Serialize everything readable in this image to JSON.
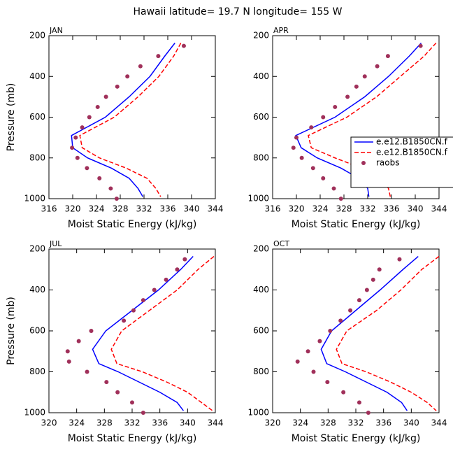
{
  "title": "Hawaii  latitude= 19.7 N longitude= 155 W",
  "chart_data": [
    {
      "type": "line",
      "title": "JAN",
      "xlabel": "Moist Static Energy (kJ/kg)",
      "ylabel": "Pressure (mb)",
      "xlim": [
        316,
        344
      ],
      "xticks": [
        316,
        320,
        324,
        328,
        332,
        336,
        340,
        344
      ],
      "ylim": [
        1000,
        200
      ],
      "yticks": [
        200,
        400,
        600,
        800,
        1000
      ],
      "legend": false,
      "series": [
        {
          "name": "e.e12.B1850CN.f",
          "color": "#0000ff",
          "style": "solid",
          "pressure": [
            236,
            300,
            400,
            500,
            600,
            690,
            750,
            800,
            850,
            900,
            950,
            990
          ],
          "values": [
            337.2,
            335.5,
            333.0,
            329.5,
            325.5,
            319.8,
            320.0,
            322.5,
            326.5,
            329.5,
            331.0,
            331.8
          ]
        },
        {
          "name": "e.e12.B1850CN.f",
          "color": "#ff0000",
          "style": "dashed",
          "pressure": [
            236,
            300,
            400,
            500,
            600,
            690,
            750,
            800,
            850,
            900,
            950,
            990
          ],
          "values": [
            338.2,
            337.0,
            334.5,
            331.0,
            327.0,
            321.2,
            321.6,
            324.5,
            329.0,
            332.5,
            334.0,
            334.8
          ]
        },
        {
          "name": "raobs",
          "color": "#a0305a",
          "style": "markers",
          "pressure": [
            250,
            300,
            350,
            400,
            450,
            500,
            550,
            600,
            650,
            700,
            750,
            800,
            850,
            900,
            950,
            1000
          ],
          "values": [
            338.7,
            334.4,
            331.4,
            329.2,
            327.5,
            325.6,
            324.2,
            322.8,
            321.6,
            320.5,
            319.9,
            320.8,
            322.4,
            324.5,
            326.4,
            327.4
          ]
        }
      ]
    },
    {
      "type": "line",
      "title": "APR",
      "xlabel": "Moist Static Energy (kJ/kg)",
      "xlim": [
        316,
        344
      ],
      "xticks": [
        316,
        320,
        324,
        328,
        332,
        336,
        340,
        344
      ],
      "ylim": [
        1000,
        200
      ],
      "yticks": [
        200,
        400,
        600,
        800,
        1000
      ],
      "legend": true,
      "series": [
        {
          "name": "e.e12.B1850CN.f",
          "color": "#0000ff",
          "style": "solid",
          "pressure": [
            236,
            300,
            400,
            500,
            600,
            690,
            750,
            800,
            850,
            900,
            950,
            990
          ],
          "values": [
            341.0,
            339.0,
            335.5,
            331.5,
            326.5,
            319.9,
            320.8,
            323.5,
            327.5,
            330.5,
            332.0,
            332.2
          ]
        },
        {
          "name": "e.e12.B1850CN.f",
          "color": "#ff0000",
          "style": "dashed",
          "pressure": [
            236,
            300,
            400,
            500,
            600,
            690,
            750,
            800,
            850,
            900,
            950,
            990
          ],
          "values": [
            343.5,
            341.5,
            337.5,
            333.5,
            328.5,
            322.0,
            322.5,
            326.5,
            331.0,
            334.0,
            335.5,
            335.8
          ]
        },
        {
          "name": "raobs",
          "color": "#a0305a",
          "style": "markers",
          "pressure": [
            250,
            300,
            350,
            400,
            450,
            500,
            550,
            600,
            650,
            700,
            750,
            800,
            850,
            900,
            950,
            1000
          ],
          "values": [
            340.9,
            335.4,
            333.6,
            331.5,
            330.1,
            328.6,
            326.5,
            324.5,
            322.5,
            320.0,
            319.5,
            320.9,
            322.8,
            324.5,
            326.3,
            327.5
          ]
        }
      ]
    },
    {
      "type": "line",
      "title": "JUL",
      "xlabel": "Moist Static Energy (kJ/kg)",
      "ylabel": "Pressure (mb)",
      "xlim": [
        320,
        344
      ],
      "xticks": [
        320,
        324,
        328,
        332,
        336,
        340,
        344
      ],
      "ylim": [
        1000,
        200
      ],
      "yticks": [
        200,
        400,
        600,
        800,
        1000
      ],
      "legend": false,
      "series": [
        {
          "name": "e.e12.B1850CN.f",
          "color": "#0000ff",
          "style": "solid",
          "pressure": [
            236,
            300,
            400,
            500,
            600,
            690,
            760,
            800,
            850,
            900,
            950,
            990
          ],
          "values": [
            340.8,
            339.0,
            335.8,
            332.0,
            328.2,
            326.3,
            327.2,
            330.0,
            333.0,
            336.0,
            338.5,
            339.4
          ]
        },
        {
          "name": "e.e12.B1850CN.f",
          "color": "#ff0000",
          "style": "dashed",
          "pressure": [
            236,
            300,
            400,
            500,
            600,
            690,
            760,
            800,
            850,
            900,
            950,
            990
          ],
          "values": [
            343.8,
            341.5,
            338.5,
            334.5,
            330.5,
            329.0,
            329.8,
            333.5,
            337.0,
            340.0,
            342.0,
            343.6
          ]
        },
        {
          "name": "raobs",
          "color": "#a0305a",
          "style": "markers",
          "pressure": [
            250,
            300,
            350,
            400,
            450,
            500,
            550,
            600,
            650,
            700,
            750,
            800,
            850,
            900,
            950,
            1000
          ],
          "values": [
            339.6,
            338.5,
            336.9,
            335.2,
            333.6,
            332.2,
            330.8,
            326.1,
            324.3,
            322.7,
            322.9,
            325.5,
            328.3,
            329.9,
            332.0,
            333.6
          ]
        }
      ]
    },
    {
      "type": "line",
      "title": "OCT",
      "xlabel": "Moist Static Energy (kJ/kg)",
      "xlim": [
        320,
        344
      ],
      "xticks": [
        320,
        324,
        328,
        332,
        336,
        340,
        344
      ],
      "ylim": [
        1000,
        200
      ],
      "yticks": [
        200,
        400,
        600,
        800,
        1000
      ],
      "legend": false,
      "series": [
        {
          "name": "e.e12.B1850CN.f",
          "color": "#0000ff",
          "style": "solid",
          "pressure": [
            236,
            300,
            400,
            500,
            600,
            690,
            760,
            800,
            850,
            900,
            950,
            990
          ],
          "values": [
            341.0,
            338.8,
            335.5,
            332.0,
            328.5,
            327.0,
            327.8,
            330.5,
            333.5,
            336.5,
            338.6,
            339.4
          ]
        },
        {
          "name": "e.e12.B1850CN.f",
          "color": "#ff0000",
          "style": "dashed",
          "pressure": [
            236,
            300,
            400,
            500,
            600,
            690,
            760,
            800,
            850,
            900,
            950,
            990
          ],
          "values": [
            344.0,
            341.5,
            338.5,
            335.0,
            330.7,
            329.2,
            330.0,
            333.5,
            337.0,
            340.0,
            342.3,
            343.6
          ]
        },
        {
          "name": "raobs",
          "color": "#a0305a",
          "style": "markers",
          "pressure": [
            250,
            300,
            350,
            400,
            450,
            500,
            550,
            600,
            650,
            700,
            750,
            800,
            850,
            900,
            950,
            1000
          ],
          "values": [
            338.3,
            335.4,
            334.5,
            333.6,
            332.5,
            331.2,
            329.8,
            328.3,
            326.8,
            325.1,
            323.6,
            325.9,
            327.9,
            330.2,
            332.5,
            333.8
          ]
        }
      ]
    }
  ]
}
